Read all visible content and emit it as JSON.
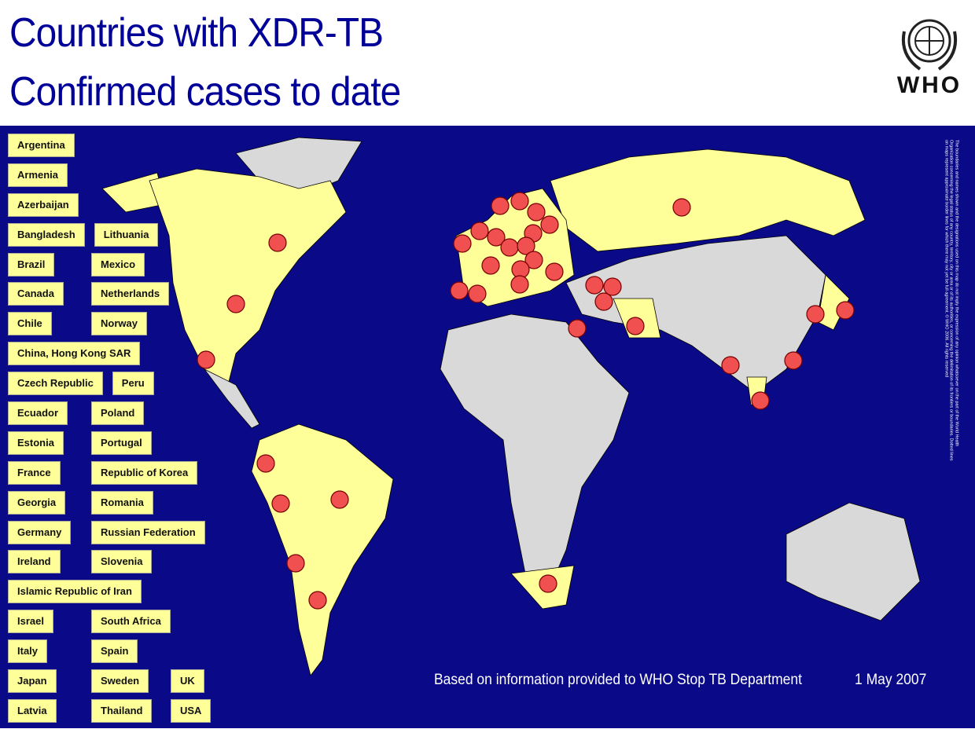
{
  "header": {
    "title_lines": [
      "Countries with XDR-TB",
      "Confirmed cases to date"
    ],
    "logo_text": "WHO"
  },
  "legend": {
    "rows": [
      [
        "Argentina"
      ],
      [
        "Armenia"
      ],
      [
        "Azerbaijan"
      ],
      [
        "Bangladesh",
        "Lithuania"
      ],
      [
        "Brazil",
        "Mexico"
      ],
      [
        "Canada",
        "Netherlands"
      ],
      [
        "Chile",
        "Norway"
      ],
      [
        "China, Hong Kong SAR"
      ],
      [
        "Czech Republic",
        "Peru"
      ],
      [
        "Ecuador",
        "Poland"
      ],
      [
        "Estonia",
        "Portugal"
      ],
      [
        "France",
        "Republic of Korea"
      ],
      [
        "Georgia",
        "Romania"
      ],
      [
        "Germany",
        "Russian Federation"
      ],
      [
        "Ireland",
        "Slovenia"
      ],
      [
        "Islamic Republic of Iran"
      ],
      [
        "Israel",
        "South Africa"
      ],
      [
        "Italy",
        "Spain"
      ],
      [
        "Japan",
        "Sweden",
        "UK"
      ],
      [
        "Latvia",
        "Thailand",
        "USA"
      ]
    ]
  },
  "map": {
    "source_note": "Based on information provided to WHO Stop TB Department",
    "date": "1 May 2007",
    "disclaimer": "The boundaries and names shown and the designations used on this map do not imply the expression of any opinion whatsoever on the part of the World Health Organization concerning the legal status of any country, territory, city or area or of its authorities, or concerning the delimitation of its frontiers or boundaries. Dotted lines on maps represent approximate border lines for which there may not yet be full agreement. © WHO 2006. All rights reserved"
  }
}
